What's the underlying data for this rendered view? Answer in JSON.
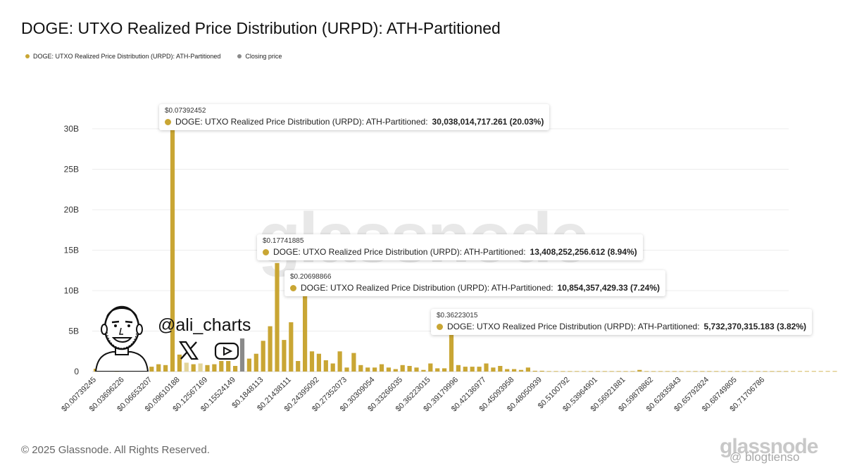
{
  "title": "DOGE: UTXO Realized Price Distribution (URPD): ATH-Partitioned",
  "legend": [
    {
      "label": "DOGE: UTXO Realized Price Distribution (URPD): ATH-Partitioned",
      "color": "#c9a634"
    },
    {
      "label": "Closing price",
      "color": "#8a8a8a"
    }
  ],
  "watermark": "glassnode",
  "handle": "@ali_charts",
  "icons": {
    "x": "x-logo-icon",
    "youtube": "youtube-logo-icon",
    "avatar": "cartoon-avatar"
  },
  "footer": "© 2025 Glassnode. All Rights Reserved.",
  "corner_watermark": "glassnode",
  "binance_handle": "@ blogtienso",
  "colors": {
    "bar": "#c9a634",
    "bar_light": "#e3d59a",
    "closing": "#8a8a8a",
    "grid": "#ececec",
    "axis_text": "#333333"
  },
  "tooltips": [
    {
      "price": "$0.07392452",
      "label": "DOGE: UTXO Realized Price Distribution (URPD): ATH-Partitioned:",
      "value": "30,038,014,717.261 (20.03%)"
    },
    {
      "price": "$0.17741885",
      "label": "DOGE: UTXO Realized Price Distribution (URPD): ATH-Partitioned:",
      "value": "13,408,252,256.612 (8.94%)"
    },
    {
      "price": "$0.20698866",
      "label": "DOGE: UTXO Realized Price Distribution (URPD): ATH-Partitioned:",
      "value": "10,854,357,429.33 (7.24%)"
    },
    {
      "price": "$0.36223015",
      "label": "DOGE: UTXO Realized Price Distribution (URPD): ATH-Partitioned:",
      "value": "5,732,370,315.183 (3.82%)"
    }
  ],
  "chart_data": {
    "type": "bar",
    "ylim": [
      0,
      30
    ],
    "y_ticks": [
      "0",
      "5B",
      "10B",
      "15B",
      "20B",
      "25B",
      "30B"
    ],
    "x_tick_labels": [
      "$0.00739245",
      "$0.03696226",
      "$0.06653207",
      "$0.09610188",
      "$0.12567169",
      "$0.15524149",
      "$0.1848113",
      "$0.21438111",
      "$0.24395092",
      "$0.27352073",
      "$0.30309054",
      "$0.33266035",
      "$0.36223015",
      "$0.39179996",
      "$0.42136977",
      "$0.45093958",
      "$0.48050939",
      "$0.5100792",
      "$0.53964901",
      "$0.56921881",
      "$0.59878862",
      "$0.62835843",
      "$0.65792824",
      "$0.68749805",
      "$0.71706786"
    ],
    "series": [
      {
        "name": "DOGE: UTXO Realized Price Distribution (URPD): ATH-Partitioned",
        "values": [
          0.35,
          0.2,
          0.1,
          0.05,
          0.1,
          0.15,
          1.3,
          1.1,
          0.6,
          0.9,
          0.8,
          30.04,
          2.1,
          1.1,
          0.9,
          1.0,
          0.8,
          0.9,
          1.3,
          1.3,
          0.7,
          1.1,
          1.6,
          2.2,
          3.8,
          5.6,
          13.41,
          3.9,
          6.1,
          1.3,
          10.85,
          2.5,
          2.2,
          1.4,
          1.0,
          2.5,
          0.5,
          2.3,
          0.8,
          0.5,
          0.5,
          0.9,
          0.5,
          0.3,
          0.8,
          0.7,
          0.5,
          0.2,
          1.0,
          0.4,
          0.4,
          5.73,
          0.8,
          0.6,
          0.6,
          0.6,
          1.0,
          0.5,
          0.7,
          0.3,
          0.3,
          0.2,
          0.5,
          0.1,
          0.1,
          0.05,
          0.05,
          0.05,
          0.05,
          0.05,
          0.05,
          0.05,
          0.05,
          0.05,
          0.05,
          0.05,
          0.05,
          0.05,
          0.2,
          0.05,
          0.05,
          0.05,
          0.05,
          0.05,
          0.05,
          0.05,
          0.05,
          0.05,
          0.05,
          0.05,
          0.05,
          0.05,
          0.05,
          0.05,
          0.05,
          0.05,
          0.05,
          0.05,
          0.05,
          0.05,
          0.05,
          0.05,
          0.05,
          0.05,
          0.05,
          0.05,
          0.05
        ]
      },
      {
        "name": "Closing price",
        "closing_index": 21,
        "value": 4.1
      }
    ]
  }
}
